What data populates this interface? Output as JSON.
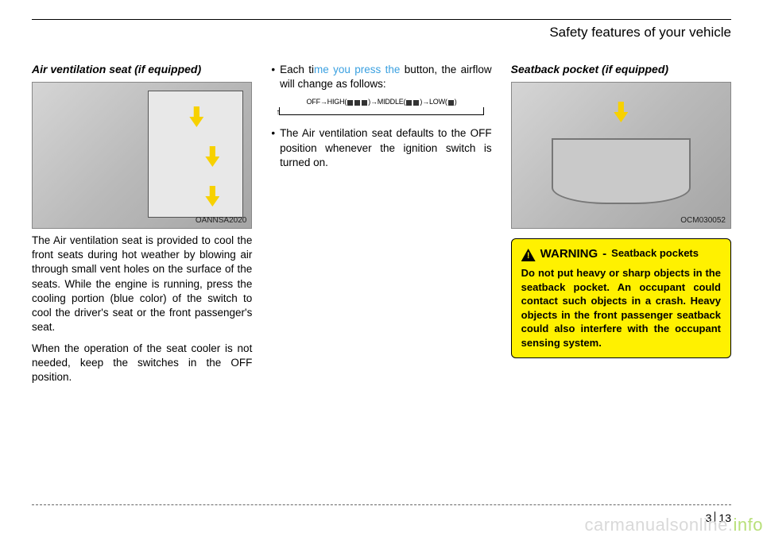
{
  "header": {
    "title": "Safety features of your vehicle"
  },
  "col1": {
    "title": "Air ventilation seat (if equipped)",
    "fig_label": "OANNSA2020",
    "p1": "The Air ventilation seat is provided to cool the front seats during hot weather by blowing air through small vent holes on the surface of the seats. While the engine is running, press the cooling portion (blue color) of the switch to cool the driver's seat or the front passenger's seat.",
    "p2": "When the operation of the seat cooler is not  needed, keep the switches in the OFF position."
  },
  "col2": {
    "bullet1_pre": "Each ti",
    "bullet1_watermark": "me you press the",
    "bullet1_post": " button, the airflow will change as follows:",
    "flow": "OFF→HIGH(   )→MIDDLE(  )→LOW( )",
    "bullet2": "The Air ventilation seat defaults to the OFF position whenever the ignition switch is turned on."
  },
  "col3": {
    "title": "Seatback pocket (if equipped)",
    "fig_label": "OCM030052",
    "warning_label": "WARNING",
    "warning_sub": "Seatback pockets",
    "warning_body": "Do not put heavy or sharp objects in the seatback pocket. An occupant could contact such objects in a crash. Heavy objects in the front passenger seatback could also interfere with the occupant sensing system."
  },
  "footer": {
    "section": "3",
    "page": "13",
    "site_a": "carmanualsonline.",
    "site_b": "info"
  }
}
